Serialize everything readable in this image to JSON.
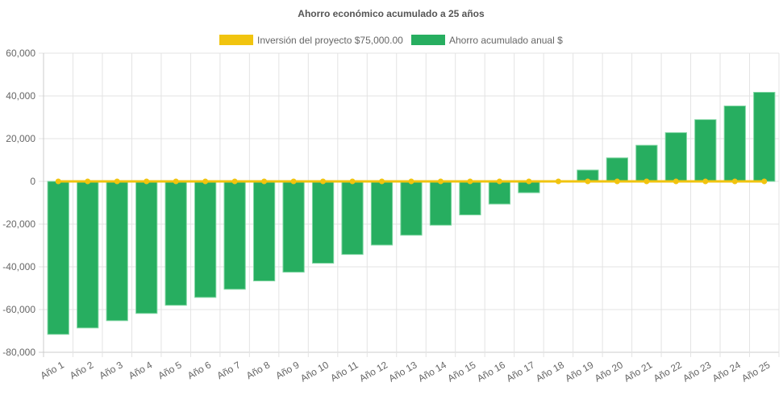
{
  "chart_data": {
    "type": "bar",
    "title": "Ahorro económico acumulado a 25 años",
    "xlabel": "",
    "ylabel": "",
    "ylim": [
      -80000,
      60000
    ],
    "yticks": [
      60000,
      40000,
      20000,
      0,
      -20000,
      -40000,
      -60000,
      -80000
    ],
    "ytick_labels": [
      "60,000",
      "40,000",
      "20,000",
      "0",
      "-20,000",
      "-40,000",
      "-60,000",
      "-80,000"
    ],
    "grid": true,
    "legend_position": "top",
    "categories": [
      "Año 1",
      "Año 2",
      "Año 3",
      "Año 4",
      "Año 5",
      "Año 6",
      "Año 7",
      "Año 8",
      "Año 9",
      "Año 10",
      "Año 11",
      "Año 12",
      "Año 13",
      "Año 14",
      "Año 15",
      "Año 16",
      "Año 17",
      "Año 18",
      "Año 19",
      "Año 20",
      "Año 21",
      "Año 22",
      "Año 23",
      "Año 24",
      "Año 25"
    ],
    "series": [
      {
        "name": "Inversión del proyecto $75,000.00",
        "type": "line",
        "color": "#f1c40f",
        "values": [
          0,
          0,
          0,
          0,
          0,
          0,
          0,
          0,
          0,
          0,
          0,
          0,
          0,
          0,
          0,
          0,
          0,
          0,
          0,
          0,
          0,
          0,
          0,
          0,
          0
        ]
      },
      {
        "name": "Ahorro acumulado anual $",
        "type": "bar",
        "color": "#27ae60",
        "values": [
          -71600,
          -68600,
          -65200,
          -61800,
          -58000,
          -54300,
          -50500,
          -46600,
          -42500,
          -38300,
          -34200,
          -29800,
          -25200,
          -20500,
          -15700,
          -10600,
          -5300,
          0,
          5300,
          11000,
          16900,
          22800,
          28900,
          35300,
          41700
        ]
      }
    ]
  }
}
